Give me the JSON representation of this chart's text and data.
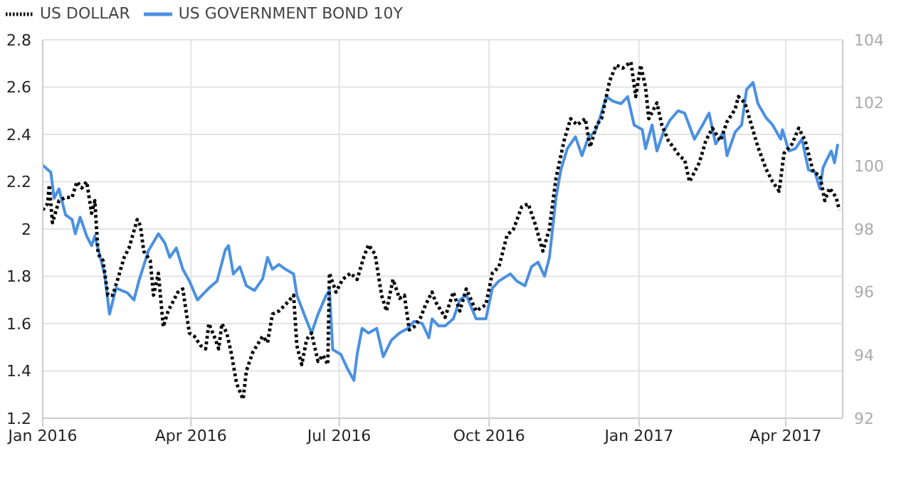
{
  "chart_data": {
    "type": "line",
    "legend": "top left",
    "grid": true,
    "marker": "none",
    "xlim": [
      "2016-01-01",
      "2017-05-06"
    ],
    "xticks": [
      {
        "value": "2016-01-01",
        "label": "Jan 2016"
      },
      {
        "value": "2016-04-01",
        "label": "Apr 2016"
      },
      {
        "value": "2016-07-01",
        "label": "Jul 2016"
      },
      {
        "value": "2016-10-01",
        "label": "Oct 2016"
      },
      {
        "value": "2017-01-01",
        "label": "Jan 2017"
      },
      {
        "value": "2017-04-01",
        "label": "Apr 2017"
      }
    ],
    "ylim": [
      1.2,
      2.8
    ],
    "yticks": [
      1.2,
      1.4,
      1.6,
      1.8,
      2,
      2.2,
      2.4,
      2.6,
      2.8
    ],
    "y2lim": [
      92,
      104
    ],
    "y2ticks": [
      92,
      94,
      96,
      98,
      100,
      102,
      104
    ],
    "series": [
      {
        "name": "US GOVERNMENT BOND 10Y",
        "color": "#4a90e2",
        "line_style": "solid",
        "x": [
          "2016-01-01",
          "2016-01-06",
          "2016-01-08",
          "2016-01-11",
          "2016-01-15",
          "2016-01-19",
          "2016-01-21",
          "2016-01-24",
          "2016-01-28",
          "2016-01-31",
          "2016-02-02",
          "2016-02-08",
          "2016-02-11",
          "2016-02-15",
          "2016-02-22",
          "2016-02-26",
          "2016-02-29",
          "2016-03-06",
          "2016-03-12",
          "2016-03-16",
          "2016-03-19",
          "2016-03-23",
          "2016-03-27",
          "2016-03-31",
          "2016-04-05",
          "2016-04-12",
          "2016-04-17",
          "2016-04-22",
          "2016-04-24",
          "2016-04-27",
          "2016-05-01",
          "2016-05-05",
          "2016-05-10",
          "2016-05-15",
          "2016-05-18",
          "2016-05-21",
          "2016-05-25",
          "2016-05-29",
          "2016-06-03",
          "2016-06-05",
          "2016-06-10",
          "2016-06-14",
          "2016-06-18",
          "2016-06-23",
          "2016-06-25",
          "2016-06-27",
          "2016-07-02",
          "2016-07-06",
          "2016-07-10",
          "2016-07-12",
          "2016-07-15",
          "2016-07-19",
          "2016-07-24",
          "2016-07-28",
          "2016-08-02",
          "2016-08-07",
          "2016-08-12",
          "2016-08-16",
          "2016-08-21",
          "2016-08-25",
          "2016-08-27",
          "2016-08-31",
          "2016-09-04",
          "2016-09-09",
          "2016-09-13",
          "2016-09-17",
          "2016-09-23",
          "2016-09-29",
          "2016-10-03",
          "2016-10-07",
          "2016-10-14",
          "2016-10-18",
          "2016-10-23",
          "2016-10-27",
          "2016-10-31",
          "2016-11-04",
          "2016-11-07",
          "2016-11-11",
          "2016-11-14",
          "2016-11-18",
          "2016-11-23",
          "2016-11-27",
          "2016-12-01",
          "2016-12-05",
          "2016-12-08",
          "2016-12-12",
          "2016-12-16",
          "2016-12-21",
          "2016-12-25",
          "2016-12-29",
          "2017-01-03",
          "2017-01-05",
          "2017-01-09",
          "2017-01-12",
          "2017-01-16",
          "2017-01-20",
          "2017-01-25",
          "2017-01-29",
          "2017-02-04",
          "2017-02-09",
          "2017-02-13",
          "2017-02-17",
          "2017-02-22",
          "2017-02-24",
          "2017-03-01",
          "2017-03-05",
          "2017-03-08",
          "2017-03-12",
          "2017-03-15",
          "2017-03-20",
          "2017-03-24",
          "2017-03-29",
          "2017-03-30",
          "2017-04-03",
          "2017-04-07",
          "2017-04-11",
          "2017-04-15",
          "2017-04-19",
          "2017-04-22",
          "2017-04-24",
          "2017-04-26",
          "2017-04-29",
          "2017-05-01",
          "2017-05-03"
        ],
        "values": [
          2.27,
          2.24,
          2.13,
          2.17,
          2.06,
          2.04,
          1.98,
          2.05,
          1.97,
          1.93,
          1.97,
          1.81,
          1.64,
          1.75,
          1.73,
          1.7,
          1.78,
          1.91,
          1.98,
          1.94,
          1.88,
          1.92,
          1.83,
          1.78,
          1.7,
          1.75,
          1.78,
          1.91,
          1.93,
          1.81,
          1.84,
          1.76,
          1.74,
          1.79,
          1.88,
          1.83,
          1.85,
          1.83,
          1.81,
          1.72,
          1.63,
          1.56,
          1.64,
          1.72,
          1.74,
          1.49,
          1.47,
          1.41,
          1.36,
          1.47,
          1.58,
          1.56,
          1.58,
          1.46,
          1.53,
          1.56,
          1.58,
          1.61,
          1.6,
          1.54,
          1.62,
          1.59,
          1.59,
          1.62,
          1.7,
          1.72,
          1.62,
          1.62,
          1.75,
          1.78,
          1.81,
          1.78,
          1.76,
          1.84,
          1.86,
          1.8,
          1.88,
          2.13,
          2.25,
          2.34,
          2.39,
          2.31,
          2.39,
          2.41,
          2.47,
          2.56,
          2.54,
          2.53,
          2.56,
          2.44,
          2.42,
          2.34,
          2.44,
          2.33,
          2.41,
          2.46,
          2.5,
          2.49,
          2.38,
          2.44,
          2.49,
          2.36,
          2.41,
          2.31,
          2.41,
          2.44,
          2.59,
          2.62,
          2.53,
          2.47,
          2.44,
          2.38,
          2.42,
          2.33,
          2.34,
          2.38,
          2.25,
          2.24,
          2.17,
          2.26,
          2.29,
          2.33,
          2.28,
          2.36
        ]
      },
      {
        "name": "US DOLLAR",
        "color": "#000000",
        "line_style": "dotted",
        "axis": "y2",
        "x": [
          "2016-01-01",
          "2016-01-04",
          "2016-01-05",
          "2016-01-07",
          "2016-01-11",
          "2016-01-15",
          "2016-01-19",
          "2016-01-22",
          "2016-01-25",
          "2016-01-28",
          "2016-01-31",
          "2016-02-02",
          "2016-02-04",
          "2016-02-07",
          "2016-02-10",
          "2016-02-13",
          "2016-02-16",
          "2016-02-20",
          "2016-02-23",
          "2016-02-28",
          "2016-03-01",
          "2016-03-03",
          "2016-03-07",
          "2016-03-09",
          "2016-03-12",
          "2016-03-15",
          "2016-03-18",
          "2016-03-20",
          "2016-03-24",
          "2016-03-27",
          "2016-03-31",
          "2016-04-03",
          "2016-04-07",
          "2016-04-10",
          "2016-04-12",
          "2016-04-16",
          "2016-04-18",
          "2016-04-20",
          "2016-04-23",
          "2016-04-26",
          "2016-04-29",
          "2016-05-03",
          "2016-05-05",
          "2016-05-09",
          "2016-05-15",
          "2016-05-18",
          "2016-05-21",
          "2016-05-25",
          "2016-05-29",
          "2016-06-03",
          "2016-06-05",
          "2016-06-08",
          "2016-06-11",
          "2016-06-14",
          "2016-06-18",
          "2016-06-21",
          "2016-06-24",
          "2016-06-25",
          "2016-06-29",
          "2016-07-03",
          "2016-07-08",
          "2016-07-12",
          "2016-07-16",
          "2016-07-19",
          "2016-07-23",
          "2016-07-27",
          "2016-07-30",
          "2016-08-03",
          "2016-08-07",
          "2016-08-10",
          "2016-08-13",
          "2016-08-16",
          "2016-08-20",
          "2016-08-23",
          "2016-08-27",
          "2016-08-29",
          "2016-09-04",
          "2016-09-09",
          "2016-09-13",
          "2016-09-17",
          "2016-09-23",
          "2016-09-29",
          "2016-10-03",
          "2016-10-07",
          "2016-10-12",
          "2016-10-16",
          "2016-10-21",
          "2016-10-25",
          "2016-10-29",
          "2016-11-03",
          "2016-11-07",
          "2016-11-11",
          "2016-11-16",
          "2016-11-20",
          "2016-11-24",
          "2016-11-29",
          "2016-12-02",
          "2016-12-06",
          "2016-12-09",
          "2016-12-14",
          "2016-12-18",
          "2016-12-22",
          "2016-12-27",
          "2016-12-30",
          "2017-01-02",
          "2017-01-05",
          "2017-01-07",
          "2017-01-12",
          "2017-01-15",
          "2017-01-19",
          "2017-01-22",
          "2017-01-26",
          "2017-01-29",
          "2017-02-01",
          "2017-02-04",
          "2017-02-07",
          "2017-02-11",
          "2017-02-15",
          "2017-02-20",
          "2017-02-24",
          "2017-03-01",
          "2017-03-03",
          "2017-03-07",
          "2017-03-11",
          "2017-03-15",
          "2017-03-20",
          "2017-03-24",
          "2017-03-28",
          "2017-03-31",
          "2017-04-05",
          "2017-04-09",
          "2017-04-13",
          "2017-04-18",
          "2017-04-22",
          "2017-04-25",
          "2017-04-28",
          "2017-05-02",
          "2017-05-04"
        ],
        "values": [
          98.6,
          98.8,
          99.4,
          98.2,
          98.9,
          99.0,
          99.0,
          99.5,
          99.3,
          99.5,
          98.5,
          98.9,
          97.2,
          97.0,
          95.9,
          95.9,
          96.4,
          97.1,
          97.4,
          98.3,
          98.1,
          97.3,
          97.0,
          95.9,
          96.6,
          94.9,
          95.4,
          95.6,
          96.0,
          96.1,
          94.7,
          94.6,
          94.3,
          94.2,
          95.0,
          94.5,
          94.2,
          95.0,
          94.7,
          94.0,
          93.1,
          92.6,
          93.5,
          94.1,
          94.6,
          94.4,
          95.3,
          95.4,
          95.6,
          95.9,
          94.3,
          93.7,
          94.5,
          94.7,
          93.8,
          94.0,
          93.7,
          96.6,
          96.0,
          96.4,
          96.6,
          96.4,
          97.1,
          97.5,
          97.2,
          95.9,
          95.4,
          96.4,
          95.8,
          95.9,
          94.8,
          94.9,
          95.2,
          95.6,
          96.0,
          95.7,
          95.2,
          96.0,
          95.4,
          96.1,
          95.4,
          95.6,
          96.6,
          96.8,
          97.8,
          98.0,
          98.7,
          98.8,
          98.2,
          97.3,
          98.0,
          99.6,
          100.8,
          101.5,
          101.3,
          101.5,
          100.6,
          101.3,
          101.5,
          102.7,
          103.2,
          103.1,
          103.3,
          102.2,
          103.2,
          102.5,
          101.5,
          102.0,
          101.3,
          100.8,
          100.6,
          100.3,
          100.2,
          99.5,
          99.8,
          100.1,
          100.8,
          101.2,
          100.8,
          101.4,
          101.8,
          102.2,
          102.0,
          101.3,
          100.6,
          99.9,
          99.5,
          99.2,
          100.4,
          100.7,
          101.2,
          100.8,
          99.8,
          99.7,
          98.9,
          99.3,
          99.0,
          98.6
        ]
      }
    ]
  }
}
